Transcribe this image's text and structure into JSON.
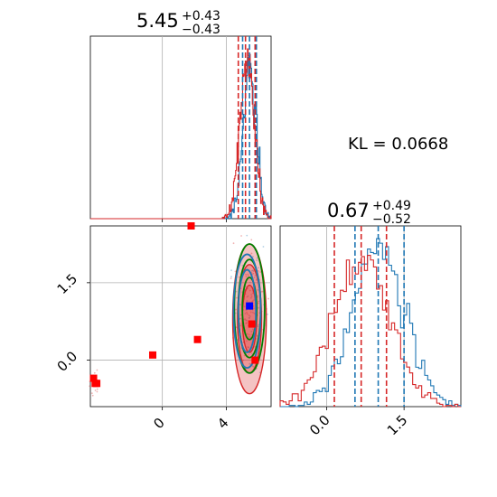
{
  "annotation": {
    "kl_text": "KL = 0.0668"
  },
  "colors": {
    "blue": "#1f77b4",
    "red": "#d62728",
    "green": "#008000",
    "marker_blue": "#0000ff",
    "marker_red": "#ff0000",
    "grid": "#b0b0b0"
  },
  "chart_data": [
    {
      "panel": "param1-marginal",
      "type": "histogram",
      "title": {
        "value": "5.45",
        "plus": "+0.43",
        "minus": "−0.43"
      },
      "xlim": [
        -4.5,
        6.8
      ],
      "grid": true,
      "gridlines_x": [
        0,
        4
      ],
      "quantile_lines": [
        {
          "color": "#1f77b4",
          "values": [
            5.02,
            5.45,
            5.88
          ]
        },
        {
          "color": "#d62728",
          "values": [
            4.75,
            5.2,
            5.8
          ]
        }
      ],
      "series": [
        {
          "color": "#1f77b4",
          "center": 5.45,
          "sigma": 0.42,
          "peak": 0.95
        },
        {
          "color": "#d62728",
          "center": 5.3,
          "sigma": 0.45,
          "peak": 1.0
        }
      ]
    },
    {
      "panel": "param2-marginal",
      "type": "histogram",
      "title": {
        "value": "0.67",
        "plus": "+0.49",
        "minus": "−0.52"
      },
      "xlim": [
        -0.9,
        2.6
      ],
      "xticks": [
        0.0,
        1.5
      ],
      "xtick_labels": [
        "0.0",
        "1.5"
      ],
      "grid": true,
      "quantile_lines": [
        {
          "color": "#1f77b4",
          "values": [
            0.55,
            1.0,
            1.5
          ]
        },
        {
          "color": "#d62728",
          "values": [
            0.15,
            0.67,
            1.16
          ]
        }
      ],
      "series": [
        {
          "color": "#1f77b4",
          "center": 1.0,
          "sigma": 0.5,
          "peak": 1.0
        },
        {
          "color": "#d62728",
          "center": 0.67,
          "sigma": 0.55,
          "peak": 0.9
        }
      ]
    },
    {
      "panel": "joint-2d",
      "type": "scatter",
      "xlim": [
        -4.5,
        6.8
      ],
      "ylim": [
        -0.9,
        2.6
      ],
      "xticks": [
        0,
        4
      ],
      "xtick_labels": [
        "0",
        "4"
      ],
      "yticks": [
        0.0,
        1.5
      ],
      "ytick_labels": [
        "0.0",
        "1.5"
      ],
      "grid": true,
      "contours": [
        {
          "color": "#d62728",
          "fill": true,
          "cx": 5.45,
          "cy": 0.8,
          "rx": [
            1.05,
            0.75,
            0.45
          ],
          "ry": [
            1.45,
            1.05,
            0.65
          ]
        },
        {
          "color": "#008000",
          "fill": false,
          "cx": 5.45,
          "cy": 1.0,
          "rx": [
            0.95,
            0.7,
            0.45
          ],
          "ry": [
            1.25,
            0.95,
            0.6
          ]
        },
        {
          "color": "#1f77b4",
          "fill": false,
          "cx": 5.3,
          "cy": 0.95,
          "rx": [
            0.85,
            0.55
          ],
          "ry": [
            1.1,
            0.8
          ]
        }
      ],
      "red_markers": [
        {
          "x": -4.3,
          "y": -0.35
        },
        {
          "x": -4.2,
          "y": -0.45
        },
        {
          "x": -4.1,
          "y": -0.45
        },
        {
          "x": -0.6,
          "y": 0.1
        },
        {
          "x": 1.8,
          "y": 2.6
        },
        {
          "x": 2.2,
          "y": 0.4
        },
        {
          "x": 5.8,
          "y": 0.0
        },
        {
          "x": 5.6,
          "y": 0.7
        }
      ],
      "blue_markers": [
        {
          "x": 5.45,
          "y": 1.05
        }
      ]
    }
  ]
}
